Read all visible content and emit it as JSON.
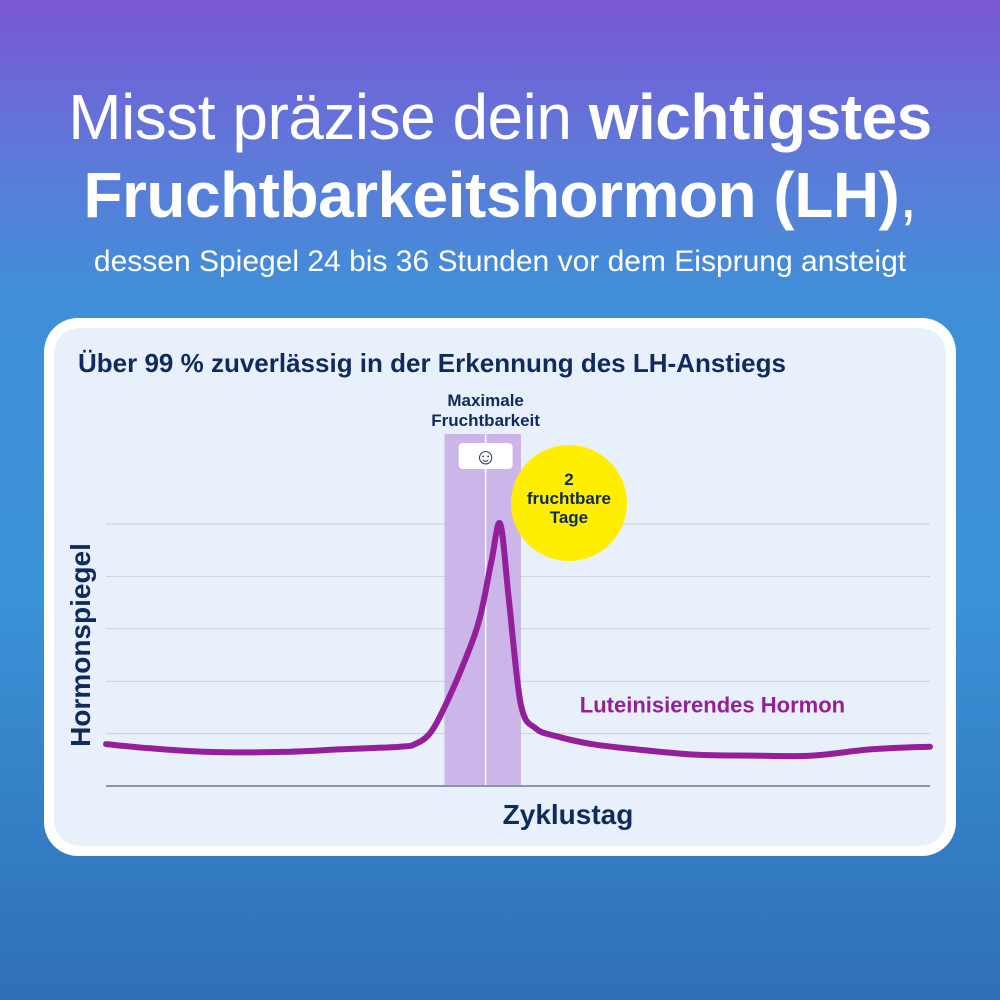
{
  "headline": {
    "line1_regular": "Misst präzise dein ",
    "line1_bold": "wichtigstes",
    "line2_bold": "Fruchtbarkeitshormon (LH)",
    "line2_regular": ",",
    "line3": "dessen Spiegel 24 bis 36 Stunden vor dem Eisprung ansteigt"
  },
  "colors": {
    "text_dark": "#0f2a5c",
    "curve": "#93209a",
    "band": "#c9aee6",
    "badge": "#ffee00",
    "grid": "#c5d1df"
  },
  "chart_data": {
    "type": "line",
    "title": "Über 99 % zuverlässig in der Erkennung des LH-Anstiegs",
    "xlabel": "Zyklustag",
    "ylabel": "Hormonspiegel",
    "xlim": [
      0,
      28
    ],
    "ylim": [
      0,
      5
    ],
    "grid": true,
    "series": [
      {
        "name": "Luteinisierendes Hormon",
        "x": [
          0,
          1.5,
          3.5,
          6,
          8,
          10,
          10.5,
          11,
          11.5,
          12.2,
          12.7,
          13.1,
          13.4,
          13.7,
          14.1,
          14.6,
          15.3,
          16.5,
          18,
          20,
          22,
          24,
          26,
          28
        ],
        "y": [
          0.8,
          0.72,
          0.65,
          0.65,
          0.7,
          0.75,
          0.8,
          1.0,
          1.5,
          2.4,
          3.2,
          4.3,
          5.0,
          3.5,
          1.55,
          1.1,
          0.95,
          0.8,
          0.7,
          0.6,
          0.58,
          0.58,
          0.7,
          0.75
        ]
      }
    ],
    "fertile_window": [
      11.5,
      14.1
    ],
    "peak_day": 12.9,
    "annotations": {
      "window_label_line1": "Maximale",
      "window_label_line2": "Fruchtbarkeit",
      "smiley": "☺",
      "badge_line1": "2",
      "badge_line2": "fruchtbare",
      "badge_line3": "Tage"
    }
  }
}
